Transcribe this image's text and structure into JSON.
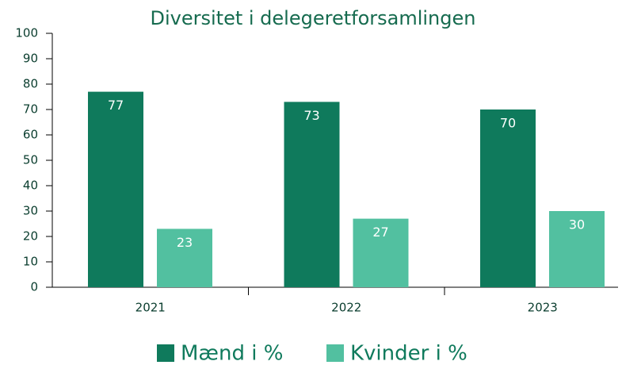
{
  "chart_data": {
    "type": "bar",
    "title": "Diversitet i delegeretforsamlingen",
    "categories": [
      "2021",
      "2022",
      "2023"
    ],
    "series": [
      {
        "name": "Mænd i %",
        "color": "#0f7a5c",
        "values": [
          77,
          73,
          70
        ]
      },
      {
        "name": "Kvinder i %",
        "color": "#52c0a0",
        "values": [
          23,
          27,
          30
        ]
      }
    ],
    "ylim": [
      0,
      100
    ],
    "yticks": [
      0,
      10,
      20,
      30,
      40,
      50,
      60,
      70,
      80,
      90,
      100
    ],
    "grid": false
  }
}
